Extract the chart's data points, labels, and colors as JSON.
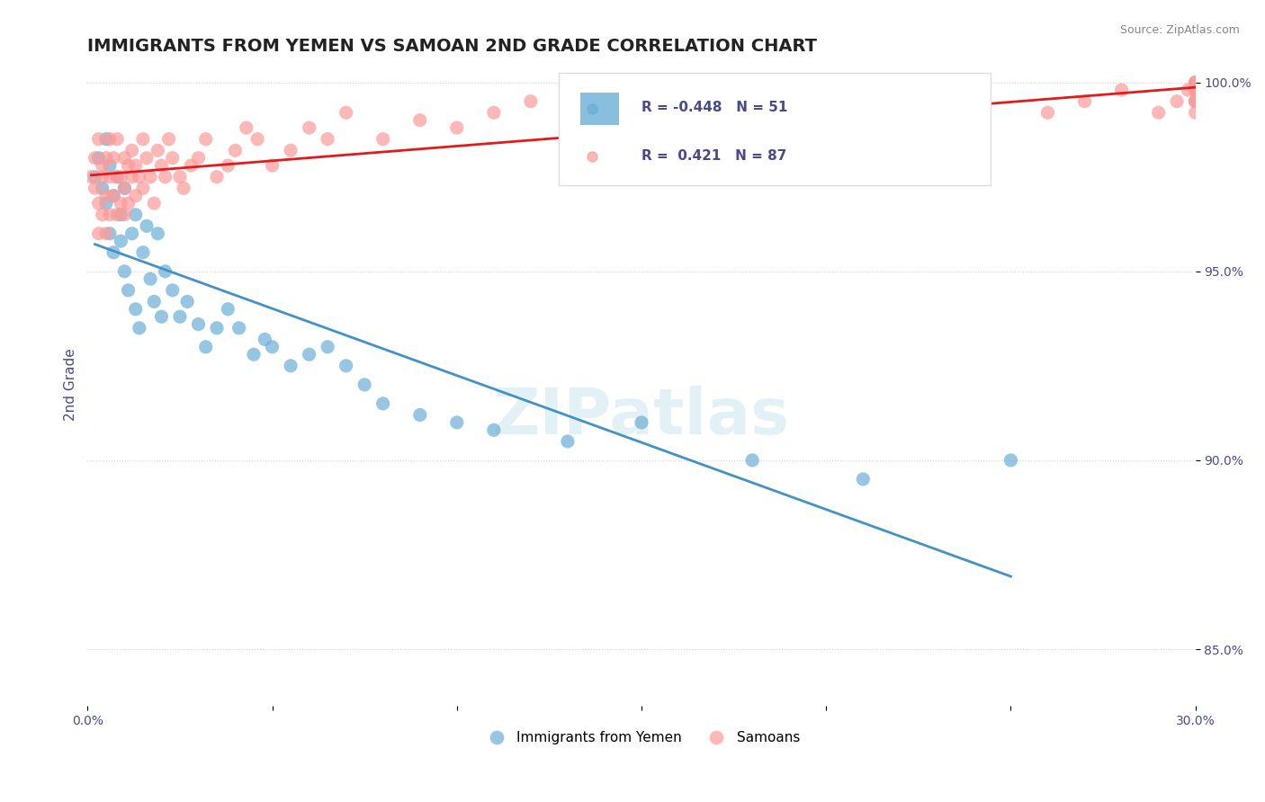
{
  "title": "IMMIGRANTS FROM YEMEN VS SAMOAN 2ND GRADE CORRELATION CHART",
  "source_text": "Source: ZipAtlas.com",
  "xlabel": "",
  "ylabel": "2nd Grade",
  "xlim": [
    0.0,
    0.3
  ],
  "ylim": [
    0.835,
    1.005
  ],
  "yticks": [
    0.85,
    0.9,
    0.95,
    1.0
  ],
  "ytick_labels": [
    "85.0%",
    "90.0%",
    "95.0%",
    "100.0%"
  ],
  "xticks": [
    0.0,
    0.05,
    0.1,
    0.15,
    0.2,
    0.25,
    0.3
  ],
  "xtick_labels": [
    "0.0%",
    "",
    "",
    "",
    "",
    "",
    "30.0%"
  ],
  "legend_R_blue": "-0.448",
  "legend_N_blue": "51",
  "legend_R_pink": "0.421",
  "legend_N_pink": "87",
  "blue_color": "#6baed6",
  "pink_color": "#fb9a99",
  "trend_blue": "#4292c6",
  "trend_pink": "#e31a1c",
  "watermark": "ZIPatlas",
  "blue_scatter_x": [
    0.002,
    0.003,
    0.004,
    0.005,
    0.005,
    0.006,
    0.006,
    0.007,
    0.007,
    0.008,
    0.009,
    0.009,
    0.01,
    0.01,
    0.011,
    0.012,
    0.013,
    0.013,
    0.014,
    0.015,
    0.016,
    0.017,
    0.018,
    0.019,
    0.02,
    0.021,
    0.023,
    0.025,
    0.027,
    0.03,
    0.032,
    0.035,
    0.038,
    0.041,
    0.045,
    0.048,
    0.05,
    0.055,
    0.06,
    0.065,
    0.07,
    0.075,
    0.08,
    0.09,
    0.1,
    0.11,
    0.13,
    0.15,
    0.18,
    0.21,
    0.25
  ],
  "blue_scatter_y": [
    0.975,
    0.98,
    0.972,
    0.968,
    0.985,
    0.96,
    0.978,
    0.955,
    0.97,
    0.975,
    0.965,
    0.958,
    0.95,
    0.972,
    0.945,
    0.96,
    0.94,
    0.965,
    0.935,
    0.955,
    0.962,
    0.948,
    0.942,
    0.96,
    0.938,
    0.95,
    0.945,
    0.938,
    0.942,
    0.936,
    0.93,
    0.935,
    0.94,
    0.935,
    0.928,
    0.932,
    0.93,
    0.925,
    0.928,
    0.93,
    0.925,
    0.92,
    0.915,
    0.912,
    0.91,
    0.908,
    0.905,
    0.91,
    0.9,
    0.895,
    0.9
  ],
  "pink_scatter_x": [
    0.001,
    0.002,
    0.002,
    0.003,
    0.003,
    0.003,
    0.004,
    0.004,
    0.004,
    0.005,
    0.005,
    0.005,
    0.006,
    0.006,
    0.006,
    0.007,
    0.007,
    0.008,
    0.008,
    0.008,
    0.009,
    0.009,
    0.01,
    0.01,
    0.01,
    0.011,
    0.011,
    0.012,
    0.012,
    0.013,
    0.013,
    0.014,
    0.015,
    0.015,
    0.016,
    0.017,
    0.018,
    0.019,
    0.02,
    0.021,
    0.022,
    0.023,
    0.025,
    0.026,
    0.028,
    0.03,
    0.032,
    0.035,
    0.038,
    0.04,
    0.043,
    0.046,
    0.05,
    0.055,
    0.06,
    0.065,
    0.07,
    0.08,
    0.09,
    0.1,
    0.11,
    0.12,
    0.13,
    0.14,
    0.15,
    0.165,
    0.18,
    0.2,
    0.22,
    0.24,
    0.26,
    0.27,
    0.28,
    0.29,
    0.295,
    0.298,
    0.3,
    0.3,
    0.3,
    0.3,
    0.3,
    0.3,
    0.3,
    0.3,
    0.3,
    0.3,
    0.3
  ],
  "pink_scatter_y": [
    0.975,
    0.98,
    0.972,
    0.985,
    0.968,
    0.96,
    0.978,
    0.965,
    0.975,
    0.98,
    0.97,
    0.96,
    0.985,
    0.975,
    0.965,
    0.97,
    0.98,
    0.975,
    0.965,
    0.985,
    0.975,
    0.968,
    0.98,
    0.972,
    0.965,
    0.978,
    0.968,
    0.975,
    0.982,
    0.97,
    0.978,
    0.975,
    0.985,
    0.972,
    0.98,
    0.975,
    0.968,
    0.982,
    0.978,
    0.975,
    0.985,
    0.98,
    0.975,
    0.972,
    0.978,
    0.98,
    0.985,
    0.975,
    0.978,
    0.982,
    0.988,
    0.985,
    0.978,
    0.982,
    0.988,
    0.985,
    0.992,
    0.985,
    0.99,
    0.988,
    0.992,
    0.995,
    0.985,
    0.99,
    0.995,
    0.992,
    0.985,
    0.992,
    0.995,
    0.998,
    0.992,
    0.995,
    0.998,
    0.992,
    0.995,
    0.998,
    1.0,
    0.998,
    0.995,
    0.992,
    0.998,
    1.0,
    0.995,
    0.998,
    1.0,
    0.995,
    0.998
  ]
}
